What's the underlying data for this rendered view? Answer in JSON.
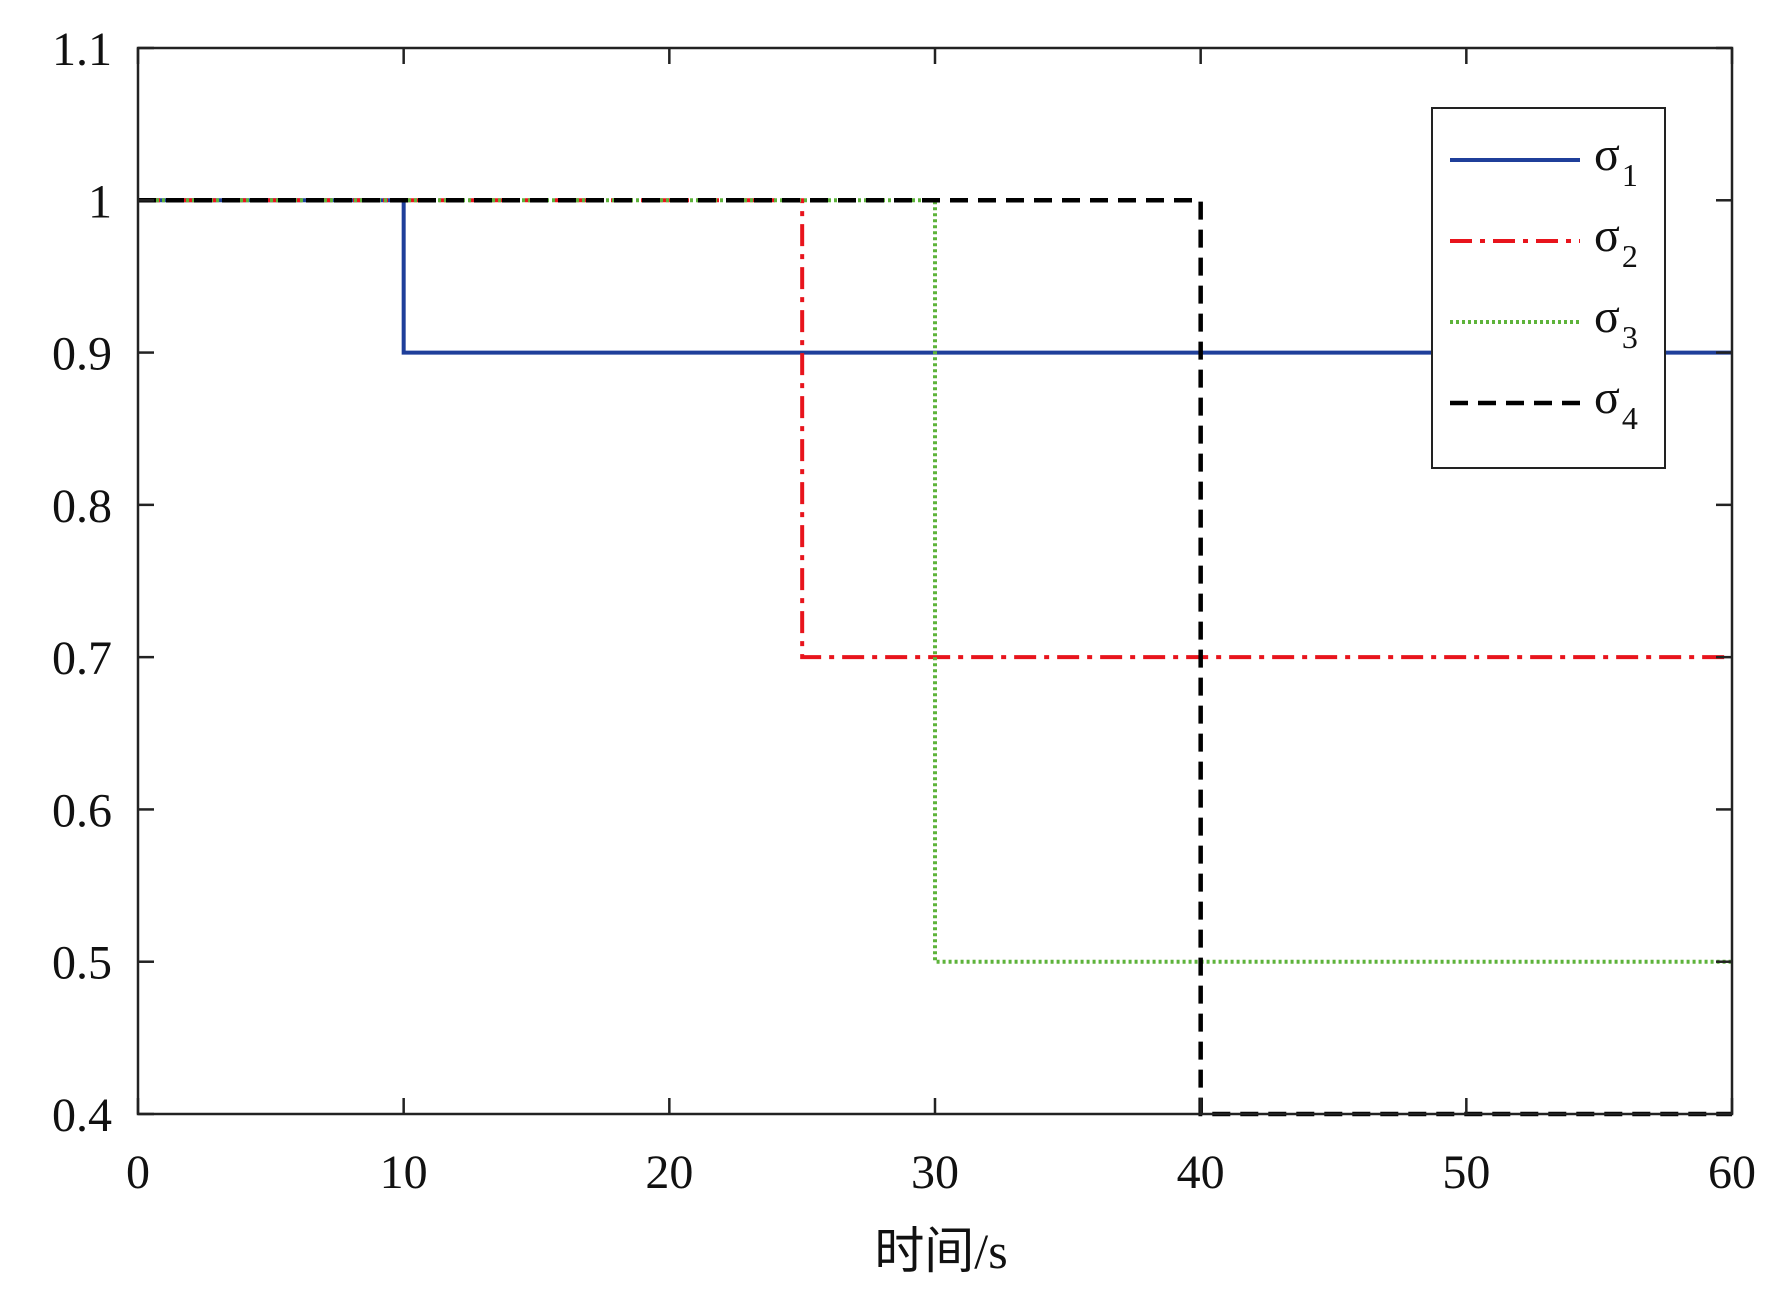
{
  "chart_data": {
    "type": "line",
    "step": true,
    "title": "",
    "xlabel": "时间/s",
    "ylabel": "",
    "xlim": [
      0,
      60
    ],
    "ylim": [
      0.4,
      1.1
    ],
    "x_ticks": [
      0,
      10,
      20,
      30,
      40,
      50,
      60
    ],
    "x_tick_labels": [
      "0",
      "10",
      "20",
      "30",
      "40",
      "50",
      "60"
    ],
    "y_ticks": [
      0.4,
      0.5,
      0.6,
      0.7,
      0.8,
      0.9,
      1.0,
      1.1
    ],
    "y_tick_labels": [
      "0.4",
      "0.5",
      "0.6",
      "0.7",
      "0.8",
      "0.9",
      "1",
      "1.1"
    ],
    "grid": false,
    "legend_position": "top-right",
    "series": [
      {
        "name": "σ1",
        "label_base": "σ",
        "label_sub": "1",
        "color": "#1f3f9a",
        "line_style": "solid",
        "x": [
          0,
          10,
          10,
          60
        ],
        "y": [
          1.0,
          1.0,
          0.9,
          0.9
        ]
      },
      {
        "name": "σ2",
        "label_base": "σ",
        "label_sub": "2",
        "color": "#e8141c",
        "line_style": "dash-dot",
        "x": [
          0,
          25,
          25,
          60
        ],
        "y": [
          1.0,
          1.0,
          0.7,
          0.7
        ]
      },
      {
        "name": "σ3",
        "label_base": "σ",
        "label_sub": "3",
        "color": "#5db33a",
        "line_style": "dotted",
        "x": [
          0,
          30,
          30,
          60
        ],
        "y": [
          1.0,
          1.0,
          0.5,
          0.5
        ]
      },
      {
        "name": "σ4",
        "label_base": "σ",
        "label_sub": "4",
        "color": "#000000",
        "line_style": "dashed",
        "x": [
          0,
          40,
          40,
          60
        ],
        "y": [
          1.0,
          1.0,
          0.4,
          0.4
        ]
      }
    ]
  }
}
